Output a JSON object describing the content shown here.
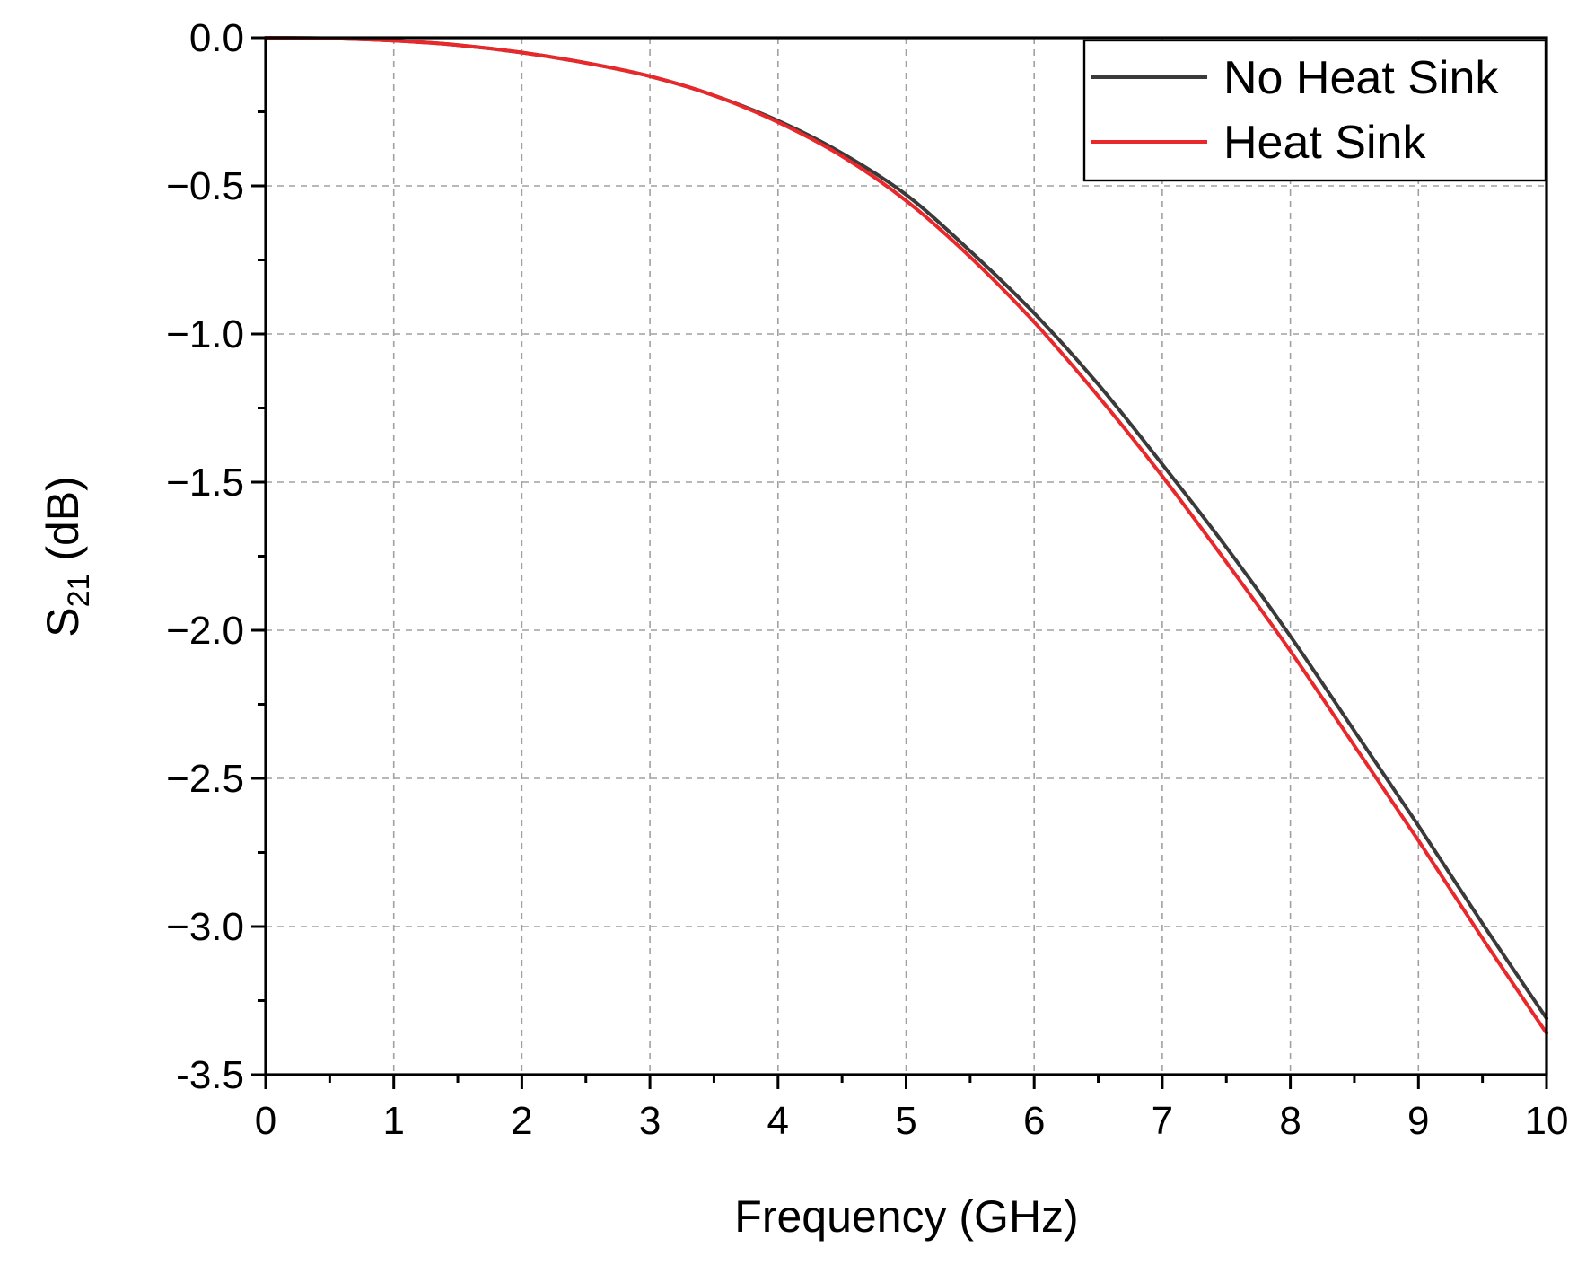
{
  "chart_data": {
    "type": "line",
    "title": "",
    "xlabel": "Frequency (GHz)",
    "ylabel": {
      "main": "S",
      "sub": "21",
      "unit": " (dB)"
    },
    "xlim": [
      0,
      10
    ],
    "ylim": [
      -3.5,
      0.0
    ],
    "x_ticks": [
      0,
      1,
      2,
      3,
      4,
      5,
      6,
      7,
      8,
      9,
      10
    ],
    "x_tick_labels": [
      "0",
      "1",
      "2",
      "3",
      "4",
      "5",
      "6",
      "7",
      "8",
      "9",
      "10"
    ],
    "y_ticks": [
      0.0,
      -0.5,
      -1.0,
      -1.5,
      -2.0,
      -2.5,
      -3.0,
      -3.5
    ],
    "y_tick_labels": [
      "0.0",
      "−0.5",
      "−1.0",
      "−1.5",
      "−2.0",
      "−2.5",
      "−3.0",
      "-3.5"
    ],
    "grid": true,
    "legend_position": "top-right",
    "x": [
      0,
      0.5,
      1,
      1.5,
      2,
      2.5,
      3,
      3.5,
      4,
      4.5,
      5,
      5.5,
      6,
      6.5,
      7,
      7.5,
      8,
      8.5,
      9,
      9.5,
      10
    ],
    "series": [
      {
        "name": "No Heat Sink",
        "color": "#3a3a3a",
        "values": [
          0.0,
          -0.002,
          -0.01,
          -0.025,
          -0.05,
          -0.085,
          -0.13,
          -0.195,
          -0.28,
          -0.39,
          -0.53,
          -0.72,
          -0.93,
          -1.17,
          -1.44,
          -1.72,
          -2.02,
          -2.34,
          -2.66,
          -2.99,
          -3.31
        ]
      },
      {
        "name": "Heat Sink",
        "color": "#e8282a",
        "values": [
          0.0,
          -0.002,
          -0.01,
          -0.025,
          -0.05,
          -0.085,
          -0.13,
          -0.195,
          -0.285,
          -0.4,
          -0.55,
          -0.74,
          -0.96,
          -1.21,
          -1.48,
          -1.77,
          -2.07,
          -2.39,
          -2.71,
          -3.04,
          -3.36
        ]
      }
    ]
  }
}
